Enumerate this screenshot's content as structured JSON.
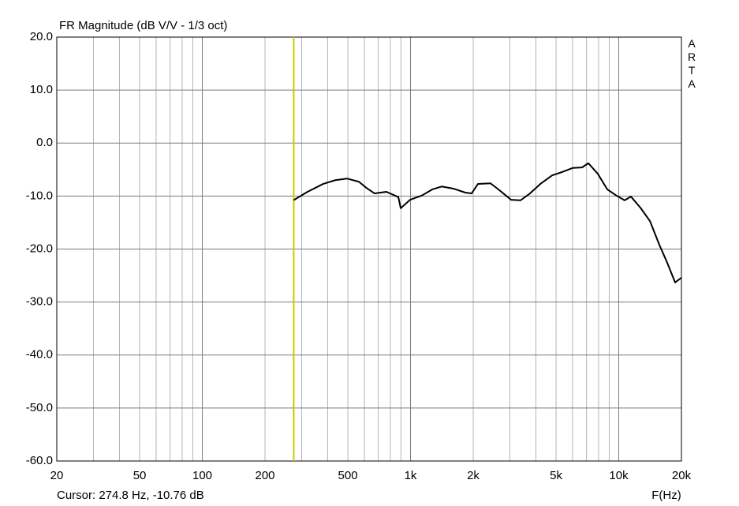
{
  "chart_data": {
    "type": "line",
    "title": "FR Magnitude (dB V/V - 1/3 oct)",
    "xlabel": "F(Hz)",
    "watermark": "ARTA",
    "cursor_label": "Cursor: 274.8 Hz, -10.76 dB",
    "cursor_x": 274.8,
    "cursor_color": "#c8c800",
    "xscale": "log",
    "grid": true,
    "xlim": [
      20,
      20000
    ],
    "ylim": [
      -60,
      20
    ],
    "xticks": [
      20,
      50,
      100,
      200,
      500,
      {
        "value": 1000,
        "label": "1k"
      },
      {
        "value": 2000,
        "label": "2k"
      },
      {
        "value": 5000,
        "label": "5k"
      },
      {
        "value": 10000,
        "label": "10k"
      },
      {
        "value": 20000,
        "label": "20k"
      }
    ],
    "xminor": [
      30,
      40,
      60,
      70,
      80,
      90,
      300,
      400,
      600,
      700,
      800,
      900,
      3000,
      4000,
      6000,
      7000,
      8000,
      9000
    ],
    "yticks": [
      {
        "value": 20,
        "label": "20.0"
      },
      {
        "value": 10,
        "label": "10.0"
      },
      {
        "value": 0,
        "label": "0.0"
      },
      {
        "value": -10,
        "label": "-10.0"
      },
      {
        "value": -20,
        "label": "-20.0"
      },
      {
        "value": -30,
        "label": "-30.0"
      },
      {
        "value": -40,
        "label": "-40.0"
      },
      {
        "value": -50,
        "label": "-50.0"
      },
      {
        "value": -60,
        "label": "-60.0"
      }
    ],
    "x": [
      274.8,
      320,
      381,
      435,
      495,
      565,
      616,
      672,
      766,
      874,
      897,
      995,
      1134,
      1271,
      1411,
      1608,
      1833,
      1965,
      2108,
      2423,
      2644,
      3040,
      3376,
      3748,
      4236,
      4786,
      5312,
      6002,
      6666,
      7146,
      7934,
      8812,
      9780,
      10672,
      11446,
      12706,
      14112,
      15666,
      17100,
      18652,
      20000
    ],
    "series": [
      {
        "name": "FR",
        "color": "#000000",
        "values": [
          -10.76,
          -9.2,
          -7.7,
          -7.0,
          -6.7,
          -7.3,
          -8.5,
          -9.5,
          -9.2,
          -10.2,
          -12.3,
          -10.7,
          -9.9,
          -8.75,
          -8.2,
          -8.6,
          -9.35,
          -9.5,
          -7.7,
          -7.6,
          -8.75,
          -10.7,
          -10.8,
          -9.5,
          -7.6,
          -6.1,
          -5.5,
          -4.7,
          -4.6,
          -3.8,
          -5.8,
          -8.75,
          -9.95,
          -10.8,
          -10.1,
          -12.2,
          -14.7,
          -19.2,
          -22.6,
          -26.3,
          -25.4
        ]
      }
    ]
  }
}
